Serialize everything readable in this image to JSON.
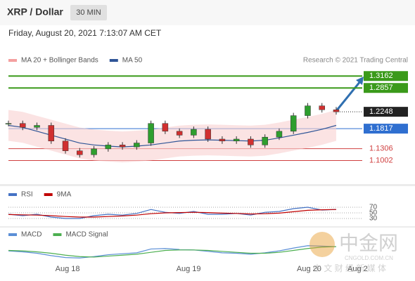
{
  "header": {
    "title": "XRP / Dollar",
    "interval": "30 MIN",
    "date": "Friday, August 20, 2021 7:13:07 AM CET",
    "credit": "Research © 2021 Trading Central"
  },
  "watermark": {
    "name": "中金网",
    "site": "CNGOLD.COM.CN",
    "tagline": "中 文 财 经 新 媒 体"
  },
  "chart_data": [
    {
      "type": "candlestick",
      "legend": [
        "MA 20 + Bollinger Bands",
        "MA 50"
      ],
      "legend_colors": [
        "#f4a0a0",
        "#2f5597"
      ],
      "xticks": [
        {
          "value": 4.15,
          "label": "Aug 18"
        },
        {
          "value": 12.64,
          "label": "Aug 19"
        },
        {
          "value": 21.1,
          "label": "Aug 20"
        },
        {
          "value": 24.5,
          "label": "Aug 2"
        }
      ],
      "ylim": [
        1.04,
        1.34
      ],
      "series": [
        {
          "name": "Price",
          "color": "#2e9e2e",
          "down_color": "#d03030",
          "values": [
            1.195,
            1.185,
            1.19,
            1.15,
            1.125,
            1.115,
            1.13,
            1.14,
            1.135,
            1.145,
            1.195,
            1.175,
            1.165,
            1.18,
            1.155,
            1.15,
            1.155,
            1.14,
            1.16,
            1.175,
            1.215,
            1.24,
            1.23,
            1.2248
          ]
        },
        {
          "name": "MA 50",
          "color": "#2f5597",
          "values": [
            1.19,
            1.185,
            1.175,
            1.165,
            1.155,
            1.145,
            1.14,
            1.137,
            1.135,
            1.137,
            1.14,
            1.145,
            1.15,
            1.152,
            1.153,
            1.152,
            1.151,
            1.15,
            1.152,
            1.158,
            1.165,
            1.172,
            1.18,
            1.19
          ]
        }
      ],
      "levels": [
        {
          "value": 1.3162,
          "color": "#3a9a1a",
          "style": "box"
        },
        {
          "value": 1.2857,
          "color": "#3a9a1a",
          "style": "box"
        },
        {
          "value": 1.2248,
          "color": "#222222",
          "style": "dotted"
        },
        {
          "value": 1.1817,
          "color": "#2f6fd0",
          "style": "box"
        },
        {
          "value": 1.1306,
          "color": "#d04040",
          "style": "text"
        },
        {
          "value": 1.1002,
          "color": "#d04040",
          "style": "text"
        }
      ]
    },
    {
      "type": "line",
      "legend": [
        "RSI",
        "9MA"
      ],
      "ylim": [
        10,
        90
      ],
      "yticks": [
        70,
        50,
        30
      ],
      "series": [
        {
          "name": "RSI",
          "color": "#4472c4",
          "values": [
            45,
            40,
            45,
            35,
            30,
            30,
            40,
            45,
            42,
            48,
            62,
            52,
            48,
            55,
            45,
            45,
            48,
            42,
            52,
            55,
            65,
            70,
            60,
            62
          ]
        },
        {
          "name": "9MA",
          "color": "#c00000",
          "values": [
            44,
            43,
            42,
            40,
            37,
            35,
            35,
            37,
            39,
            42,
            47,
            50,
            51,
            52,
            51,
            49,
            48,
            46,
            47,
            49,
            54,
            59,
            61,
            62
          ]
        }
      ]
    },
    {
      "type": "line",
      "legend": [
        "MACD",
        "MACD Signal"
      ],
      "ylim": [
        -0.02,
        0.02
      ],
      "series": [
        {
          "name": "MACD",
          "color": "#5b8fd6",
          "values": [
            0.002,
            0.0,
            -0.003,
            -0.008,
            -0.012,
            -0.013,
            -0.01,
            -0.006,
            -0.004,
            -0.002,
            0.006,
            0.007,
            0.005,
            0.004,
            0.001,
            -0.002,
            -0.003,
            -0.005,
            -0.002,
            0.002,
            0.008,
            0.013,
            0.012,
            0.011
          ]
        },
        {
          "name": "MACD Signal",
          "color": "#4caf50",
          "values": [
            0.003,
            0.002,
            0.0,
            -0.003,
            -0.007,
            -0.01,
            -0.011,
            -0.009,
            -0.007,
            -0.005,
            -0.001,
            0.003,
            0.004,
            0.004,
            0.003,
            0.001,
            -0.001,
            -0.003,
            -0.003,
            -0.001,
            0.003,
            0.007,
            0.01,
            0.011
          ]
        }
      ]
    }
  ]
}
